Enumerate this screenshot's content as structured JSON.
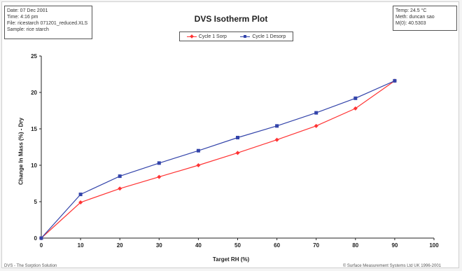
{
  "header": {
    "info_left": [
      "Date: 07 Dec 2001",
      "Time: 4:16 pm",
      "File: ricestarch 071201_reduced.XLS",
      "Sample: rice starch"
    ],
    "info_right": [
      "Temp: 24.5 °C",
      "Meth: duncan sao",
      "M(0): 40.5303"
    ]
  },
  "footer": {
    "left": "DVS - The Sorption Solution",
    "right": "© Surface Measurement Systems Ltd UK 1996-2001"
  },
  "colors": {
    "sorp": "#ff3333",
    "desorp": "#3344aa"
  },
  "chart_data": {
    "type": "line",
    "title": "DVS Isotherm Plot",
    "xlabel": "Target RH (%)",
    "ylabel": "Change In Mass (%) - Dry",
    "xlim": [
      0,
      100
    ],
    "ylim": [
      0,
      25
    ],
    "xticks": [
      0,
      10,
      20,
      30,
      40,
      50,
      60,
      70,
      80,
      90,
      100
    ],
    "yticks": [
      0,
      5,
      10,
      15,
      20,
      25
    ],
    "legend_position": "top-center",
    "grid": false,
    "series": [
      {
        "name": "Cycle 1 Sorp",
        "color": "#ff3333",
        "marker": "diamond",
        "x": [
          0,
          10,
          20,
          30,
          40,
          50,
          60,
          70,
          80,
          90
        ],
        "y": [
          0,
          4.9,
          6.8,
          8.4,
          10.0,
          11.7,
          13.5,
          15.4,
          17.8,
          21.6
        ]
      },
      {
        "name": "Cycle 1 Desorp",
        "color": "#3344aa",
        "marker": "square",
        "x": [
          0,
          10,
          20,
          30,
          40,
          50,
          60,
          70,
          80,
          90
        ],
        "y": [
          0,
          6.0,
          8.5,
          10.3,
          12.0,
          13.8,
          15.4,
          17.2,
          19.2,
          21.6
        ]
      }
    ]
  }
}
